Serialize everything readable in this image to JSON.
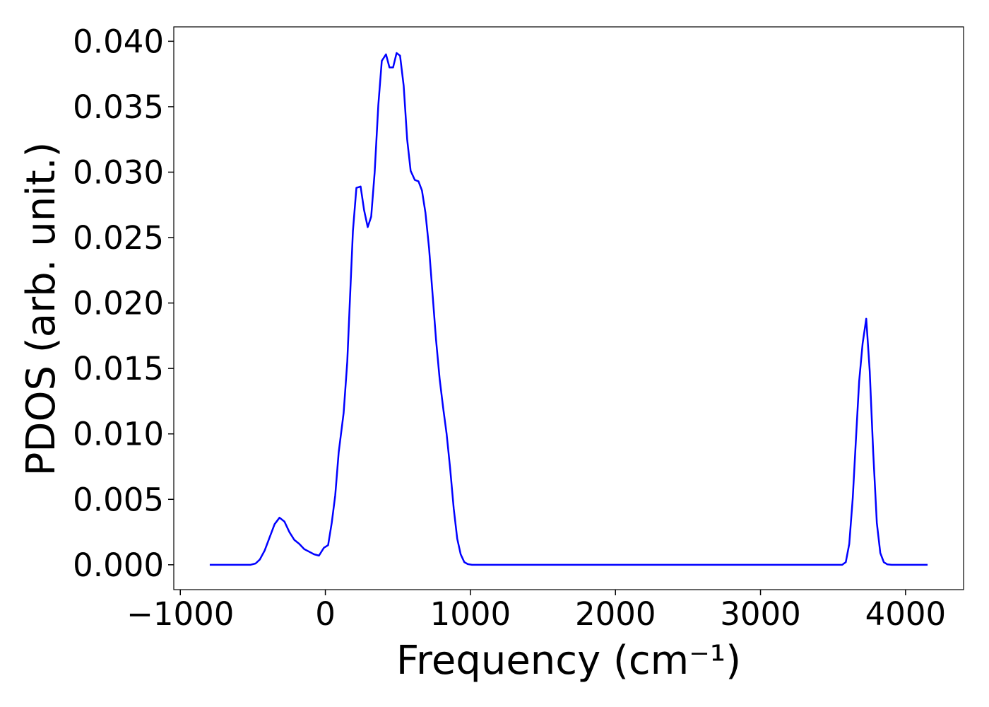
{
  "chart_data": {
    "type": "line",
    "xlabel": "Frequency (cm⁻¹)",
    "ylabel": "PDOS (arb. unit.)",
    "color": "#0000ff",
    "x": [
      -797,
      -515,
      -481,
      -452,
      -418,
      -384,
      -350,
      -316,
      -282,
      -248,
      -214,
      -180,
      -146,
      -112,
      -78,
      -44,
      -10,
      19,
      44,
      68,
      92,
      126,
      151,
      170,
      190,
      214,
      243,
      267,
      292,
      316,
      340,
      365,
      389,
      418,
      442,
      467,
      491,
      515,
      540,
      564,
      588,
      617,
      642,
      666,
      690,
      715,
      739,
      763,
      788,
      812,
      836,
      860,
      885,
      909,
      933,
      958,
      982,
      1011,
      3563,
      3588,
      3612,
      3636,
      3661,
      3680,
      3704,
      3729,
      3753,
      3777,
      3802,
      3826,
      3850,
      3875,
      3904,
      4152
    ],
    "values": [
      0,
      0,
      0.0001,
      0.0004,
      0.0011,
      0.0021,
      0.0031,
      0.0036,
      0.0033,
      0.0025,
      0.0019,
      0.0016,
      0.0012,
      0.001,
      0.0008,
      0.0007,
      0.0013,
      0.0015,
      0.0032,
      0.0053,
      0.0086,
      0.0116,
      0.0155,
      0.0204,
      0.0255,
      0.0288,
      0.0289,
      0.0271,
      0.0258,
      0.0266,
      0.03,
      0.0351,
      0.0385,
      0.039,
      0.038,
      0.038,
      0.0391,
      0.0389,
      0.0366,
      0.0325,
      0.0301,
      0.0294,
      0.0293,
      0.0286,
      0.0269,
      0.0242,
      0.0207,
      0.0172,
      0.0142,
      0.012,
      0.01,
      0.0074,
      0.0043,
      0.002,
      0.0008,
      0.0002,
      5e-05,
      0,
      0,
      0.0002,
      0.0016,
      0.0051,
      0.0102,
      0.014,
      0.0169,
      0.0188,
      0.0148,
      0.0086,
      0.0032,
      0.0009,
      0.0002,
      3e-05,
      0,
      0
    ],
    "xlim": [
      -1045,
      4400
    ],
    "ylim": [
      -0.0019,
      0.0411
    ],
    "xticks": [
      {
        "value": -1000,
        "label": "−1000"
      },
      0,
      1000,
      2000,
      3000,
      4000
    ],
    "yticks": [
      {
        "value": 0,
        "label": "0.000"
      },
      {
        "value": 0.005,
        "label": "0.005"
      },
      {
        "value": 0.01,
        "label": "0.010"
      },
      {
        "value": 0.015,
        "label": "0.015"
      },
      {
        "value": 0.02,
        "label": "0.020"
      },
      {
        "value": 0.025,
        "label": "0.025"
      },
      {
        "value": 0.03,
        "label": "0.030"
      },
      {
        "value": 0.035,
        "label": "0.035"
      },
      {
        "value": 0.04,
        "label": "0.040"
      }
    ],
    "grid": false
  }
}
